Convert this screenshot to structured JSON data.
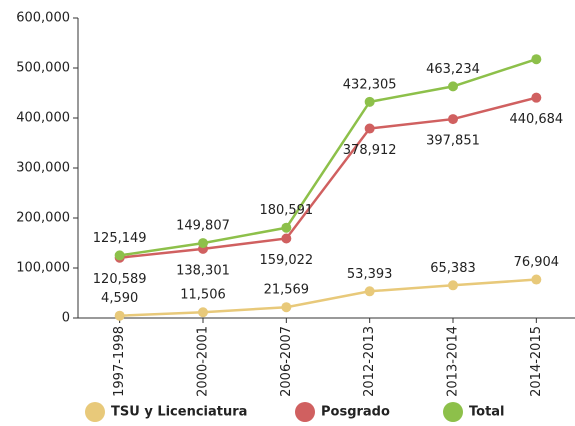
{
  "chart_data": {
    "type": "line",
    "categories": [
      "1997-1998",
      "2000-2001",
      "2006-2007",
      "2012-2013",
      "2013-2014",
      "2014-2015"
    ],
    "series": [
      {
        "name": "TSU y Licenciatura",
        "color": "#e8c97a",
        "values": [
          4590,
          11506,
          21569,
          53393,
          65383,
          76904
        ],
        "value_labels": [
          "4,590",
          "11,506",
          "21,569",
          "53,393",
          "65,383",
          "76,904"
        ],
        "label_side": "above"
      },
      {
        "name": "Posgrado",
        "color": "#d06060",
        "values": [
          120589,
          138301,
          159022,
          378912,
          397851,
          440684
        ],
        "value_labels": [
          "120,589",
          "138,301",
          "159,022",
          "378,912",
          "397,851",
          "440,684"
        ],
        "label_side": "below"
      },
      {
        "name": "Total",
        "color": "#8dc04a",
        "values": [
          125149,
          149807,
          180591,
          432305,
          463234,
          517588
        ],
        "value_labels": [
          "125,149",
          "149,807",
          "180,591",
          "432,305",
          "463,234",
          null
        ],
        "label_side": "above"
      }
    ],
    "ylim": [
      0,
      600000
    ],
    "yticks": [
      0,
      {
        "value": 100000,
        "label": "100,000"
      },
      {
        "value": 200000,
        "label": "200,000"
      },
      {
        "value": 300000,
        "label": "300,000"
      },
      {
        "value": 400000,
        "label": "400,000"
      },
      {
        "value": 500000,
        "label": "500,000"
      },
      {
        "value": 600000,
        "label": "600,000"
      }
    ],
    "grid": false,
    "legend": "bottom"
  }
}
